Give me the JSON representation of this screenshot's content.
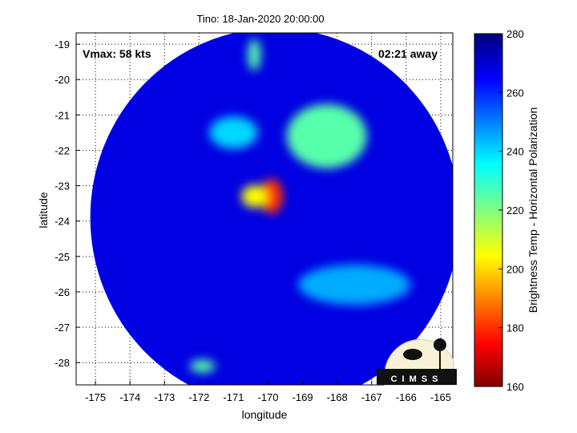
{
  "chart_data": {
    "type": "heatmap",
    "title": "Tino: 18-Jan-2020 20:00:00",
    "xlabel": "longitude",
    "ylabel": "latitude",
    "xlim": [
      -175.56,
      -164.65
    ],
    "ylim": [
      -28.63,
      -18.68
    ],
    "xticks": [
      -175,
      -174,
      -173,
      -172,
      -171,
      -170,
      -169,
      -168,
      -167,
      -166,
      -165
    ],
    "yticks": [
      -19,
      -20,
      -21,
      -22,
      -23,
      -24,
      -25,
      -26,
      -27,
      -28
    ],
    "grid": true,
    "colorbar": {
      "label": "Brightness Temp - Horizontal Polarization",
      "range": [
        160,
        280
      ],
      "ticks": [
        160,
        180,
        200,
        220,
        240,
        260,
        280
      ]
    },
    "annotations": {
      "vmax": "Vmax: 58 kts",
      "time_away": "02:21 away"
    },
    "swath": {
      "center_lon": -169.8,
      "center_lat": -23.9,
      "radius_deg": 5.35
    },
    "features": [
      {
        "name": "eye-core",
        "lon": -169.9,
        "lat": -23.3,
        "value": 180
      },
      {
        "name": "inner-ring",
        "lon": -170.4,
        "lat": -23.3,
        "value": 205
      },
      {
        "name": "north-band",
        "lon": -168.3,
        "lat": -21.6,
        "value": 225
      },
      {
        "name": "northwest-band",
        "lon": -171.0,
        "lat": -21.5,
        "value": 240
      },
      {
        "name": "south-band",
        "lon": -167.5,
        "lat": -25.8,
        "value": 245
      },
      {
        "name": "north-spot",
        "lon": -170.4,
        "lat": -19.3,
        "value": 225
      },
      {
        "name": "southwest-spot",
        "lon": -171.9,
        "lat": -28.1,
        "value": 225
      }
    ],
    "background_value": 268
  },
  "logo": {
    "text": "CIMSS"
  }
}
